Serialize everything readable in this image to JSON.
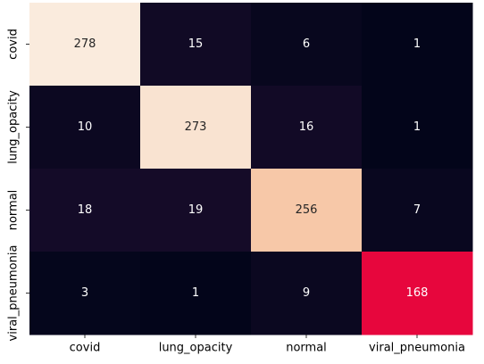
{
  "chart_data": {
    "type": "heatmap",
    "title": "",
    "xlabel": "",
    "ylabel": "",
    "x_categories": [
      "covid",
      "lung_opacity",
      "normal",
      "viral_pneumonia"
    ],
    "y_categories": [
      "covid",
      "lung_opacity",
      "normal",
      "viral_pneumonia"
    ],
    "values": [
      [
        278,
        15,
        6,
        1
      ],
      [
        10,
        273,
        16,
        1
      ],
      [
        18,
        19,
        256,
        7
      ],
      [
        3,
        1,
        9,
        168
      ]
    ],
    "colormap": "rocket",
    "colorbar": false,
    "grid": false
  }
}
